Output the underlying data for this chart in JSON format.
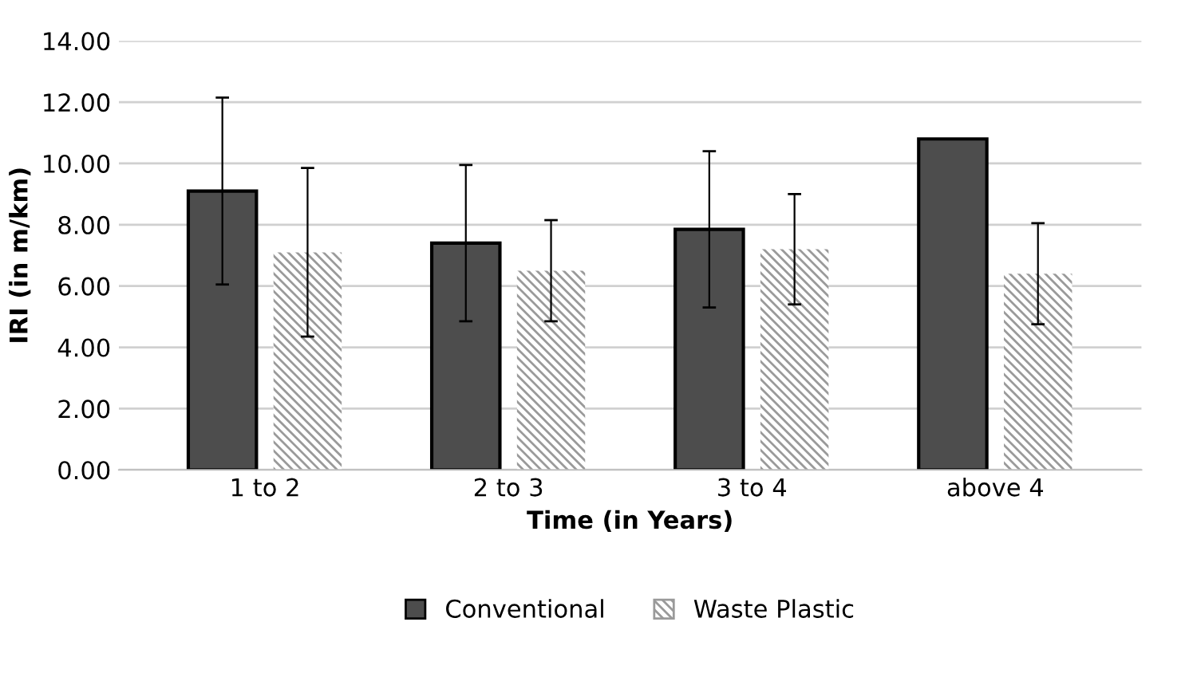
{
  "chart_data": {
    "type": "bar",
    "xlabel": "Time (in Years)",
    "ylabel": "IRI (in m/km)",
    "categories": [
      "1 to 2",
      "2 to 3",
      "3 to 4",
      "above 4"
    ],
    "series": [
      {
        "name": "Conventional",
        "color": "#4d4d4d",
        "values": [
          9.1,
          7.4,
          7.85,
          10.8
        ],
        "errors": [
          3.05,
          2.55,
          2.55,
          null
        ]
      },
      {
        "name": "Waste Plastic",
        "color": "#9a9a9a",
        "values": [
          7.1,
          6.5,
          7.2,
          6.4
        ],
        "errors": [
          2.75,
          1.65,
          1.8,
          1.65
        ]
      }
    ],
    "ylim": [
      0,
      14
    ],
    "yticks": [
      {
        "value": 0,
        "label": "0.00"
      },
      {
        "value": 2,
        "label": "2.00"
      },
      {
        "value": 4,
        "label": "4.00"
      },
      {
        "value": 6,
        "label": "6.00"
      },
      {
        "value": 8,
        "label": "8.00"
      },
      {
        "value": 10,
        "label": "10.00"
      },
      {
        "value": 12,
        "label": "12.00"
      },
      {
        "value": 14,
        "label": "14.00"
      }
    ],
    "grid": "y",
    "legend": "bottom"
  }
}
